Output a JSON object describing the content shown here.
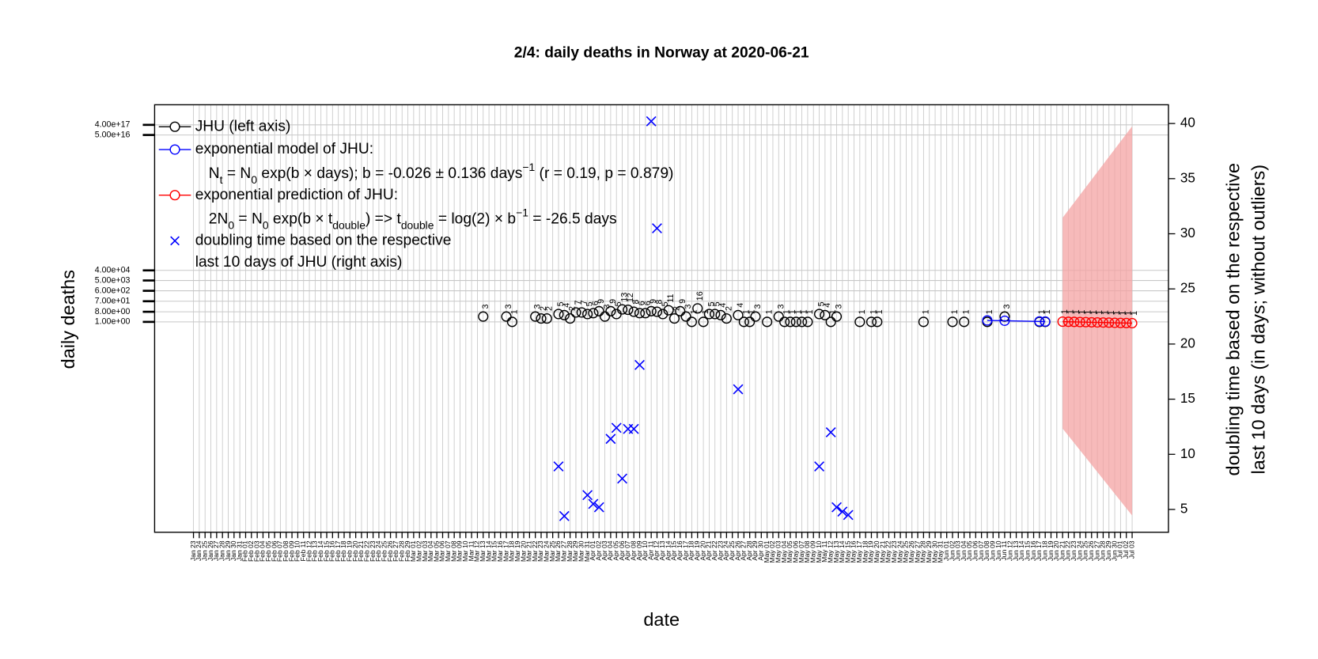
{
  "chart_data": {
    "type": "line",
    "title": "2/4: daily deaths in Norway at 2020-06-21",
    "xlabel": "date",
    "ylabel": "daily deaths",
    "y2label": [
      "doubling time based on the respective",
      "last 10 days (in days; without outliers)"
    ],
    "ylog": true,
    "grid": true,
    "legend": "top-left",
    "categories": [
      "Jan 23",
      "Jan 24",
      "Jan 25",
      "Jan 26",
      "Jan 27",
      "Jan 28",
      "Jan 29",
      "Jan 30",
      "Jan 31",
      "Feb 01",
      "Feb 02",
      "Feb 03",
      "Feb 04",
      "Feb 05",
      "Feb 06",
      "Feb 07",
      "Feb 08",
      "Feb 09",
      "Feb 10",
      "Feb 11",
      "Feb 12",
      "Feb 13",
      "Feb 14",
      "Feb 15",
      "Feb 16",
      "Feb 17",
      "Feb 18",
      "Feb 19",
      "Feb 20",
      "Feb 21",
      "Feb 22",
      "Feb 23",
      "Feb 24",
      "Feb 25",
      "Feb 26",
      "Feb 27",
      "Feb 28",
      "Feb 29",
      "Mar 01",
      "Mar 02",
      "Mar 03",
      "Mar 04",
      "Mar 05",
      "Mar 06",
      "Mar 07",
      "Mar 08",
      "Mar 09",
      "Mar 10",
      "Mar 11",
      "Mar 12",
      "Mar 13",
      "Mar 14",
      "Mar 15",
      "Mar 16",
      "Mar 17",
      "Mar 18",
      "Mar 19",
      "Mar 20",
      "Mar 21",
      "Mar 22",
      "Mar 23",
      "Mar 24",
      "Mar 25",
      "Mar 26",
      "Mar 27",
      "Mar 28",
      "Mar 29",
      "Mar 30",
      "Mar 31",
      "Apr 01",
      "Apr 02",
      "Apr 03",
      "Apr 04",
      "Apr 05",
      "Apr 06",
      "Apr 07",
      "Apr 08",
      "Apr 09",
      "Apr 10",
      "Apr 11",
      "Apr 12",
      "Apr 13",
      "Apr 14",
      "Apr 15",
      "Apr 16",
      "Apr 17",
      "Apr 18",
      "Apr 19",
      "Apr 20",
      "Apr 21",
      "Apr 22",
      "Apr 23",
      "Apr 24",
      "Apr 25",
      "Apr 26",
      "Apr 27",
      "Apr 28",
      "Apr 29",
      "Apr 30",
      "May 01",
      "May 02",
      "May 03",
      "May 04",
      "May 05",
      "May 06",
      "May 07",
      "May 08",
      "May 09",
      "May 10",
      "May 11",
      "May 12",
      "May 13",
      "May 14",
      "May 15",
      "May 16",
      "May 17",
      "May 18",
      "May 19",
      "May 20",
      "May 21",
      "May 22",
      "May 23",
      "May 24",
      "May 25",
      "May 26",
      "May 27",
      "May 28",
      "May 29",
      "May 30",
      "May 31",
      "Jun 01",
      "Jun 02",
      "Jun 03",
      "Jun 04",
      "Jun 05",
      "Jun 06",
      "Jun 07",
      "Jun 08",
      "Jun 09",
      "Jun 10",
      "Jun 11",
      "Jun 12",
      "Jun 13",
      "Jun 14",
      "Jun 15",
      "Jun 16",
      "Jun 17",
      "Jun 18",
      "Jun 19",
      "Jun 20",
      "Jun 21",
      "Jun 22",
      "Jun 23",
      "Jun 24",
      "Jun 25",
      "Jun 26",
      "Jun 27",
      "Jun 28",
      "Jun 29",
      "Jun 30",
      "Jul 01",
      "Jul 02",
      "Jul 03"
    ],
    "highlighted_categories": [
      "Jan 26",
      "Feb 02",
      "Feb 09",
      "Feb 16",
      "Feb 23",
      "Mar 01",
      "Mar 08",
      "Mar 15",
      "Mar 22",
      "Mar 29",
      "Apr 05",
      "Apr 12",
      "Apr 19",
      "Apr 26",
      "May 03",
      "May 10",
      "May 17",
      "May 24",
      "May 31",
      "Jun 07",
      "Jun 14",
      "Jun 21",
      "Jun 28"
    ],
    "highlight_color": "#e69f00",
    "ylim": [
      1.6e-19,
      2.5e+19
    ],
    "yticks": [
      {
        "value": 1,
        "label": "1.00e+00"
      },
      {
        "value": 8,
        "label": "8.00e+00"
      },
      {
        "value": 70,
        "label": "7.00e+01"
      },
      {
        "value": 600,
        "label": "6.00e+02"
      },
      {
        "value": 5000,
        "label": "5.00e+03"
      },
      {
        "value": 40000,
        "label": "4.00e+04"
      },
      {
        "value": 5e+16,
        "label": "5.00e+16"
      },
      {
        "value": 4e+17,
        "label": "4.00e+17"
      }
    ],
    "y2lim": [
      2.93,
      41.7
    ],
    "y2ticks": [
      5,
      10,
      15,
      20,
      25,
      30,
      35,
      40
    ],
    "band": {
      "color": "#f4a3a3",
      "x": [
        "Jun 21",
        "Jul 03"
      ],
      "lower": [
        3e-10,
        5e-18
      ],
      "upper": [
        2000000000.0,
        3e+17
      ]
    },
    "series": [
      {
        "name": "JHU (left axis)",
        "color": "#000000",
        "marker": "circle",
        "line": false,
        "data_labels": true,
        "x": [
          "Mar 13",
          "Mar 17",
          "Mar 18",
          "Mar 22",
          "Mar 23",
          "Mar 24",
          "Mar 26",
          "Mar 27",
          "Mar 28",
          "Mar 29",
          "Mar 30",
          "Mar 31",
          "Apr 01",
          "Apr 02",
          "Apr 03",
          "Apr 04",
          "Apr 05",
          "Apr 06",
          "Apr 07",
          "Apr 08",
          "Apr 09",
          "Apr 10",
          "Apr 11",
          "Apr 12",
          "Apr 13",
          "Apr 14",
          "Apr 15",
          "Apr 16",
          "Apr 17",
          "Apr 18",
          "Apr 19",
          "Apr 20",
          "Apr 21",
          "Apr 22",
          "Apr 23",
          "Apr 24",
          "Apr 26",
          "Apr 27",
          "Apr 28",
          "Apr 29",
          "May 01",
          "May 03",
          "May 04",
          "May 05",
          "May 06",
          "May 07",
          "May 08",
          "May 10",
          "May 11",
          "May 12",
          "May 13",
          "May 17",
          "May 19",
          "May 20",
          "May 28",
          "Jun 02",
          "Jun 04",
          "Jun 08",
          "Jun 11",
          "Jun 17",
          "Jun 18"
        ],
        "values": [
          3,
          3,
          1,
          3,
          2,
          2,
          5,
          4,
          2,
          7,
          7,
          5,
          6,
          9,
          3,
          9,
          5,
          13,
          12,
          8,
          6,
          6,
          9,
          8,
          5,
          11,
          2,
          9,
          3,
          1,
          16,
          1,
          5,
          5,
          4,
          2,
          4,
          1,
          1,
          3,
          1,
          3,
          1,
          1,
          1,
          1,
          1,
          5,
          4,
          1,
          3,
          1,
          1,
          1,
          1,
          1,
          1,
          1,
          3,
          1,
          1
        ]
      },
      {
        "name": "exponential model of JHU:",
        "color": "#0000ff",
        "marker": "circle",
        "line": true,
        "legend_note": [
          {
            "text": "N"
          },
          {
            "text": "t",
            "script": "sub"
          },
          {
            "text": " = N"
          },
          {
            "text": "0",
            "script": "sub"
          },
          {
            "text": " exp(b × days); b = -0.026 ± 0.136 days"
          },
          {
            "text": "−1",
            "script": "sup"
          },
          {
            "text": " (r = 0.19, p = 0.879)"
          }
        ],
        "x": [
          "Jun 08",
          "Jun 11",
          "Jun 17",
          "Jun 18"
        ],
        "values": [
          1.35,
          1.27,
          1.1,
          1.07
        ]
      },
      {
        "name": "exponential prediction of JHU:",
        "color": "#ff0000",
        "marker": "circle",
        "line": true,
        "data_labels": true,
        "legend_note": [
          {
            "text": "2N"
          },
          {
            "text": "0",
            "script": "sub"
          },
          {
            "text": " = N"
          },
          {
            "text": "0",
            "script": "sub"
          },
          {
            "text": " exp(b × t"
          },
          {
            "text": "double",
            "script": "sub"
          },
          {
            "text": ") => t"
          },
          {
            "text": "double",
            "script": "sub"
          },
          {
            "text": " = log(2) × b"
          },
          {
            "text": "−1",
            "script": "sup"
          },
          {
            "text": " = -26.5 days"
          }
        ],
        "x": [
          "Jun 21",
          "Jun 22",
          "Jun 23",
          "Jun 24",
          "Jun 25",
          "Jun 26",
          "Jun 27",
          "Jun 28",
          "Jun 29",
          "Jun 30",
          "Jul 01",
          "Jul 02",
          "Jul 03"
        ],
        "values": [
          1.05,
          1.02,
          1.0,
          0.97,
          0.95,
          0.92,
          0.9,
          0.88,
          0.86,
          0.83,
          0.81,
          0.79,
          0.77
        ],
        "value_labels": [
          "1",
          "1",
          "1",
          "1",
          "1",
          "1",
          "1",
          "1",
          "1",
          "1",
          "1",
          "1",
          "1"
        ]
      },
      {
        "name": "doubling time based on the respective",
        "color": "#0000ff",
        "marker": "x",
        "line": false,
        "axis": "y2",
        "legend_note": [
          {
            "text": "last 10 days of JHU (right axis)"
          }
        ],
        "x": [
          "Mar 26",
          "Mar 27",
          "Mar 31",
          "Apr 01",
          "Apr 02",
          "Apr 04",
          "Apr 05",
          "Apr 06",
          "Apr 07",
          "Apr 08",
          "Apr 09",
          "Apr 11",
          "Apr 12",
          "Apr 26",
          "May 10",
          "May 12",
          "May 13",
          "May 14",
          "May 15"
        ],
        "values": [
          8.9,
          4.4,
          6.3,
          5.5,
          5.2,
          11.4,
          12.4,
          7.8,
          12.3,
          12.3,
          18.1,
          40.2,
          30.5,
          15.9,
          8.9,
          12,
          5.2,
          4.8,
          4.5
        ]
      }
    ]
  }
}
